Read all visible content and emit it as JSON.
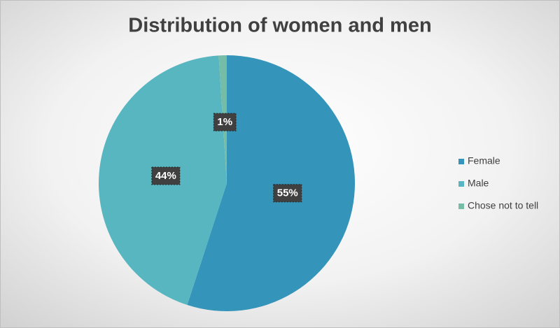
{
  "chart_data": {
    "type": "pie",
    "title": "Distribution of women and men",
    "categories": [
      "Female",
      "Male",
      "Chose not to tell"
    ],
    "values": [
      55,
      44,
      1
    ],
    "value_labels": [
      "55%",
      "44%",
      "1%"
    ],
    "colors": [
      "#3494ba",
      "#58b6c0",
      "#75bda7"
    ],
    "legend": "right"
  }
}
